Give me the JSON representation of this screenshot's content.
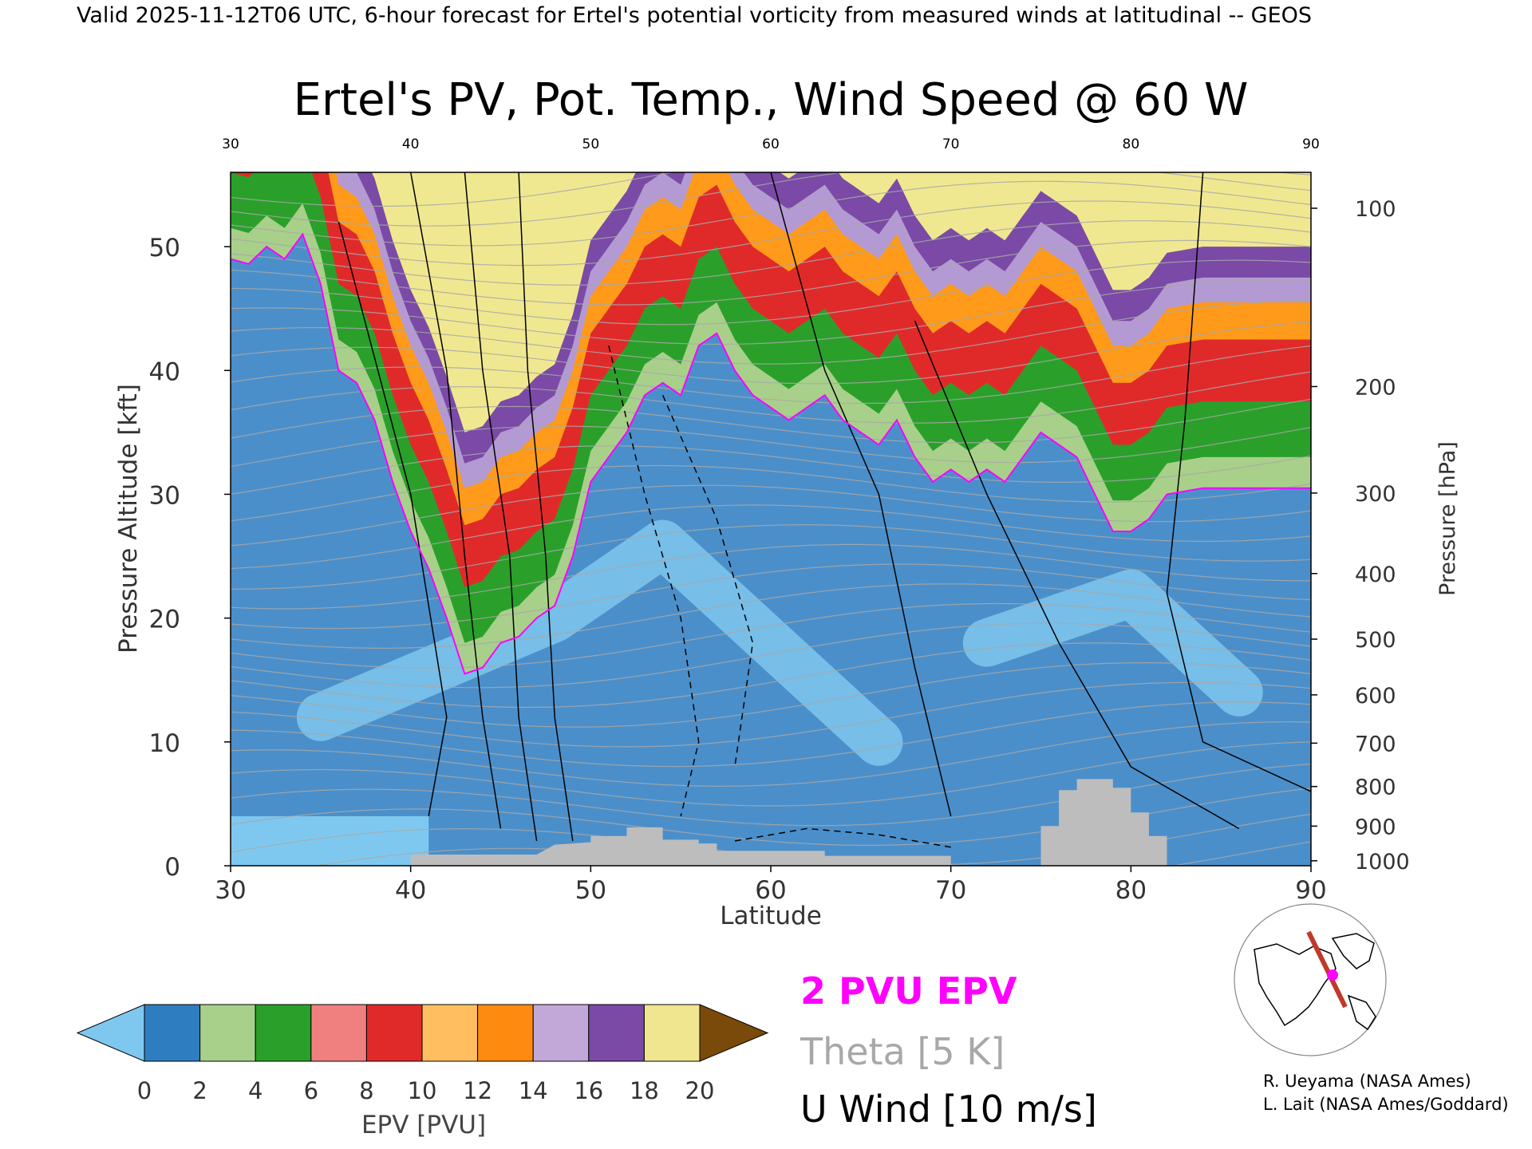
{
  "header": "Valid 2025-11-12T06 UTC, 6-hour forecast for Ertel's potential vorticity from measured winds at latitudinal -- GEOS",
  "chart_data": {
    "type": "heatmap",
    "title": "Ertel's PV, Pot. Temp., Wind Speed @ 60 W",
    "xlabel": "Latitude",
    "ylabel_left": "Pressure Altitude [kft]",
    "ylabel_right": "Pressure [hPa]",
    "xlim": [
      30,
      90
    ],
    "ylim": [
      0,
      56
    ],
    "x_ticks": [
      30,
      40,
      50,
      60,
      70,
      80,
      90
    ],
    "x_top_ticks": [
      "30",
      "40",
      "50",
      "60",
      "70",
      "80",
      "90"
    ],
    "y_ticks": [
      0,
      10,
      20,
      30,
      40,
      50
    ],
    "pressure_ticks": [
      {
        "label": "100",
        "kft": 53.1
      },
      {
        "label": "200",
        "kft": 38.7
      },
      {
        "label": "300",
        "kft": 30.1
      },
      {
        "label": "400",
        "kft": 23.6
      },
      {
        "label": "500",
        "kft": 18.3
      },
      {
        "label": "600",
        "kft": 13.8
      },
      {
        "label": "700",
        "kft": 9.9
      },
      {
        "label": "800",
        "kft": 6.4
      },
      {
        "label": "900",
        "kft": 3.2
      },
      {
        "label": "1000",
        "kft": 0.4
      }
    ],
    "tropopause_2pvu_kft": [
      [
        30,
        49
      ],
      [
        31,
        48.6
      ],
      [
        32,
        50
      ],
      [
        33,
        49
      ],
      [
        34,
        51
      ],
      [
        35,
        47
      ],
      [
        36,
        40
      ],
      [
        37,
        39
      ],
      [
        38,
        36
      ],
      [
        39,
        31
      ],
      [
        40,
        27
      ],
      [
        41,
        24
      ],
      [
        42,
        20
      ],
      [
        43,
        15.5
      ],
      [
        44,
        16
      ],
      [
        45,
        18
      ],
      [
        46,
        18.5
      ],
      [
        47,
        20
      ],
      [
        48,
        21
      ],
      [
        49,
        25
      ],
      [
        50,
        31
      ],
      [
        51,
        33
      ],
      [
        52,
        35
      ],
      [
        53,
        38
      ],
      [
        54,
        39
      ],
      [
        55,
        38
      ],
      [
        56,
        42
      ],
      [
        57,
        43
      ],
      [
        58,
        40
      ],
      [
        59,
        38
      ],
      [
        60,
        37
      ],
      [
        61,
        36
      ],
      [
        62,
        37
      ],
      [
        63,
        38
      ],
      [
        64,
        36
      ],
      [
        65,
        35
      ],
      [
        66,
        34
      ],
      [
        67,
        36
      ],
      [
        68,
        33
      ],
      [
        69,
        31
      ],
      [
        70,
        32
      ],
      [
        71,
        31
      ],
      [
        72,
        32
      ],
      [
        73,
        31
      ],
      [
        74,
        33
      ],
      [
        75,
        35
      ],
      [
        76,
        34
      ],
      [
        77,
        33
      ],
      [
        78,
        30
      ],
      [
        79,
        27
      ],
      [
        80,
        27
      ],
      [
        81,
        28
      ],
      [
        82,
        30
      ],
      [
        84,
        30.5
      ],
      [
        86,
        30.5
      ],
      [
        88,
        30.5
      ],
      [
        90,
        30.5
      ]
    ],
    "upper_bands_kft": [
      {
        "pv_min": 4,
        "color": "#2aa02a",
        "offset": 2.5
      },
      {
        "pv_min": 8,
        "color": "#e02a2a",
        "offset": 7
      },
      {
        "pv_min": 12,
        "color": "#ff9a1a",
        "offset": 12
      },
      {
        "pv_min": 14,
        "color": "#b49ad2",
        "offset": 15
      },
      {
        "pv_min": 16,
        "color": "#7a4aa6",
        "offset": 17
      },
      {
        "pv_min": 18,
        "color": "#f0e890",
        "offset": 19.5
      }
    ],
    "terrain_kft": [
      [
        30,
        0
      ],
      [
        40,
        0
      ],
      [
        40,
        0.9
      ],
      [
        47,
        0.9
      ],
      [
        48,
        1.7
      ],
      [
        50,
        1.9
      ],
      [
        50,
        2.4
      ],
      [
        52,
        2.4
      ],
      [
        52,
        3.1
      ],
      [
        54,
        3.1
      ],
      [
        54,
        2.1
      ],
      [
        56,
        2.1
      ],
      [
        56,
        1.8
      ],
      [
        57,
        1.8
      ],
      [
        57,
        1.2
      ],
      [
        63,
        1.2
      ],
      [
        63,
        0.8
      ],
      [
        70,
        0.8
      ],
      [
        70,
        0
      ],
      [
        75,
        0
      ],
      [
        75,
        3.2
      ],
      [
        76,
        3.2
      ],
      [
        76,
        6.1
      ],
      [
        77,
        6.1
      ],
      [
        77,
        7.0
      ],
      [
        79,
        7.0
      ],
      [
        79,
        6.3
      ],
      [
        80,
        6.3
      ],
      [
        80,
        4.3
      ],
      [
        81,
        4.3
      ],
      [
        81,
        2.4
      ],
      [
        82,
        2.4
      ],
      [
        82,
        0
      ],
      [
        90,
        0
      ]
    ],
    "colorbar": {
      "label": "EPV [PVU]",
      "tick_labels": [
        "0",
        "2",
        "4",
        "6",
        "8",
        "10",
        "12",
        "14",
        "16",
        "18",
        "20"
      ],
      "colors": [
        "#2e7dc0",
        "#a8d08a",
        "#2aa02a",
        "#f08080",
        "#e02a2a",
        "#ffbf60",
        "#ff8a10",
        "#c2a8d8",
        "#7a4aa6",
        "#f0e690"
      ],
      "under_color": "#7ec8f0",
      "over_color": "#7a4a0a"
    },
    "legend": {
      "epv": "2 PVU EPV",
      "theta": "Theta [5 K]",
      "uwind": "U Wind [10 m/s]",
      "epv_color": "#ff00ff",
      "theta_color": "#a8a8a8"
    }
  },
  "credits": [
    "R. Ueyama (NASA Ames)",
    "L. Lait (NASA Ames/Goddard)"
  ]
}
